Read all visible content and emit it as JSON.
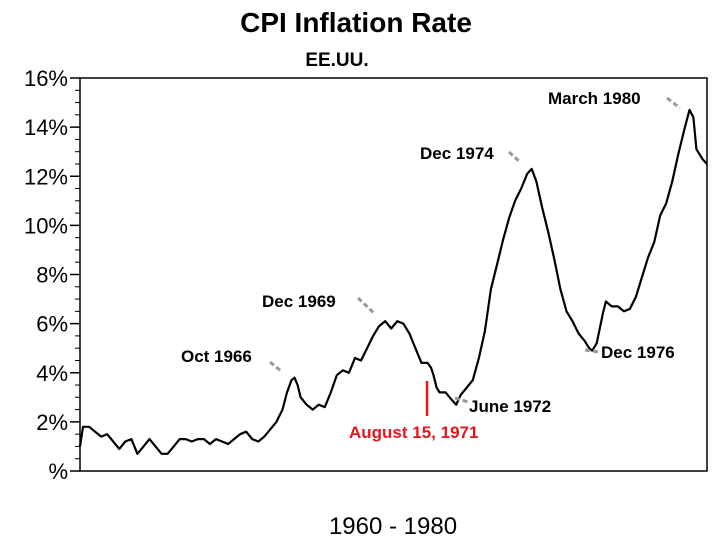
{
  "chart_data": {
    "type": "line",
    "title": "CPI Inflation Rate",
    "subtitle": "EE.UU.",
    "xlabel": "1960 - 1980",
    "ylabel": "",
    "xlim": [
      1960.0,
      1980.75
    ],
    "ylim": [
      0,
      16
    ],
    "y_ticks": [
      {
        "value": 0,
        "label": "%"
      },
      {
        "value": 2,
        "label": "2%"
      },
      {
        "value": 4,
        "label": "4%"
      },
      {
        "value": 6,
        "label": "6%"
      },
      {
        "value": 8,
        "label": "8%"
      },
      {
        "value": 10,
        "label": "10%"
      },
      {
        "value": 12,
        "label": "12%"
      },
      {
        "value": 14,
        "label": "14%"
      },
      {
        "value": 16,
        "label": "16%"
      }
    ],
    "grid": false,
    "series": [
      {
        "name": "",
        "color": "#000000",
        "points": [
          [
            1960.0,
            1.0
          ],
          [
            1960.1,
            1.8
          ],
          [
            1960.3,
            1.8
          ],
          [
            1960.5,
            1.6
          ],
          [
            1960.7,
            1.4
          ],
          [
            1960.9,
            1.5
          ],
          [
            1961.1,
            1.2
          ],
          [
            1961.3,
            0.9
          ],
          [
            1961.5,
            1.2
          ],
          [
            1961.7,
            1.3
          ],
          [
            1961.9,
            0.7
          ],
          [
            1962.1,
            1.0
          ],
          [
            1962.3,
            1.3
          ],
          [
            1962.5,
            1.0
          ],
          [
            1962.7,
            0.7
          ],
          [
            1962.9,
            0.7
          ],
          [
            1963.1,
            1.0
          ],
          [
            1963.3,
            1.3
          ],
          [
            1963.5,
            1.3
          ],
          [
            1963.7,
            1.2
          ],
          [
            1963.9,
            1.3
          ],
          [
            1964.1,
            1.3
          ],
          [
            1964.3,
            1.1
          ],
          [
            1964.5,
            1.3
          ],
          [
            1964.7,
            1.2
          ],
          [
            1964.9,
            1.1
          ],
          [
            1965.1,
            1.3
          ],
          [
            1965.3,
            1.5
          ],
          [
            1965.5,
            1.6
          ],
          [
            1965.7,
            1.3
          ],
          [
            1965.9,
            1.2
          ],
          [
            1966.1,
            1.4
          ],
          [
            1966.3,
            1.7
          ],
          [
            1966.5,
            2.0
          ],
          [
            1966.7,
            2.5
          ],
          [
            1966.85,
            3.2
          ],
          [
            1967.0,
            3.7
          ],
          [
            1967.1,
            3.8
          ],
          [
            1967.2,
            3.5
          ],
          [
            1967.3,
            3.0
          ],
          [
            1967.5,
            2.7
          ],
          [
            1967.7,
            2.5
          ],
          [
            1967.9,
            2.7
          ],
          [
            1968.1,
            2.6
          ],
          [
            1968.3,
            3.2
          ],
          [
            1968.5,
            3.9
          ],
          [
            1968.7,
            4.1
          ],
          [
            1968.9,
            4.0
          ],
          [
            1969.1,
            4.6
          ],
          [
            1969.3,
            4.5
          ],
          [
            1969.5,
            5.0
          ],
          [
            1969.7,
            5.5
          ],
          [
            1969.9,
            5.9
          ],
          [
            1970.1,
            6.1
          ],
          [
            1970.3,
            5.8
          ],
          [
            1970.5,
            6.1
          ],
          [
            1970.7,
            6.0
          ],
          [
            1970.9,
            5.6
          ],
          [
            1971.1,
            5.0
          ],
          [
            1971.3,
            4.4
          ],
          [
            1971.5,
            4.4
          ],
          [
            1971.62,
            4.2
          ],
          [
            1971.7,
            3.9
          ],
          [
            1971.8,
            3.4
          ],
          [
            1971.9,
            3.2
          ],
          [
            1972.1,
            3.2
          ],
          [
            1972.3,
            2.9
          ],
          [
            1972.45,
            2.7
          ],
          [
            1972.6,
            3.1
          ],
          [
            1972.8,
            3.4
          ],
          [
            1973.0,
            3.7
          ],
          [
            1973.2,
            4.6
          ],
          [
            1973.4,
            5.7
          ],
          [
            1973.6,
            7.4
          ],
          [
            1973.8,
            8.4
          ],
          [
            1974.0,
            9.4
          ],
          [
            1974.2,
            10.3
          ],
          [
            1974.4,
            11.0
          ],
          [
            1974.6,
            11.5
          ],
          [
            1974.8,
            12.1
          ],
          [
            1974.95,
            12.3
          ],
          [
            1975.1,
            11.8
          ],
          [
            1975.3,
            10.7
          ],
          [
            1975.5,
            9.7
          ],
          [
            1975.7,
            8.6
          ],
          [
            1975.9,
            7.4
          ],
          [
            1976.1,
            6.5
          ],
          [
            1976.3,
            6.1
          ],
          [
            1976.5,
            5.6
          ],
          [
            1976.7,
            5.3
          ],
          [
            1976.85,
            5.0
          ],
          [
            1976.95,
            4.9
          ],
          [
            1977.1,
            5.2
          ],
          [
            1977.3,
            6.4
          ],
          [
            1977.4,
            6.9
          ],
          [
            1977.6,
            6.7
          ],
          [
            1977.8,
            6.7
          ],
          [
            1978.0,
            6.5
          ],
          [
            1978.2,
            6.6
          ],
          [
            1978.4,
            7.1
          ],
          [
            1978.6,
            7.9
          ],
          [
            1978.8,
            8.7
          ],
          [
            1979.0,
            9.3
          ],
          [
            1979.2,
            10.4
          ],
          [
            1979.4,
            10.9
          ],
          [
            1979.6,
            11.8
          ],
          [
            1979.8,
            12.9
          ],
          [
            1980.0,
            13.9
          ],
          [
            1980.17,
            14.7
          ],
          [
            1980.3,
            14.4
          ],
          [
            1980.4,
            13.1
          ],
          [
            1980.5,
            12.9
          ],
          [
            1980.6,
            12.7
          ],
          [
            1980.75,
            12.5
          ]
        ]
      }
    ],
    "annotations": [
      {
        "text": "Oct 1966",
        "color": "#000000"
      },
      {
        "text": "Dec 1969",
        "color": "#000000"
      },
      {
        "text": "Dec 1974",
        "color": "#000000"
      },
      {
        "text": "March 1980",
        "color": "#000000"
      },
      {
        "text": "June 1972",
        "color": "#000000"
      },
      {
        "text": "Dec 1976",
        "color": "#000000"
      },
      {
        "text": "August 15, 1971",
        "color": "#e8141e"
      }
    ]
  }
}
